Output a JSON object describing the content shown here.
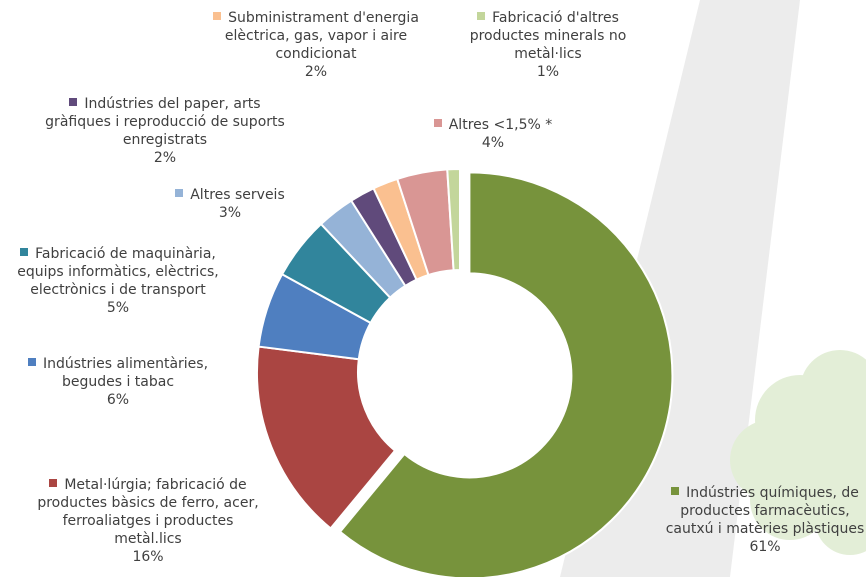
{
  "chart_data": {
    "type": "donut",
    "categories": [
      "Indústries químiques, de productes farmacèutics, cautxú i matèries plàstiques",
      "Metal·lúrgia; fabricació de productes bàsics de ferro, acer, ferroaliatges i productes metàl.lics",
      "Indústries alimentàries, begudes i tabac",
      "Fabricació de maquinària, equips informàtics, elèctrics, electrònics i de transport",
      "Altres serveis",
      "Indústries del paper, arts gràfiques i reproducció de suports enregistrats",
      "Subministrament d'energia elèctrica, gas, vapor i aire condicionat",
      "Altres <1,5% *",
      "Fabricació d'altres productes minerals no metàl·lics"
    ],
    "values": [
      61,
      16,
      6,
      5,
      3,
      2,
      2,
      4,
      1
    ],
    "value_labels": [
      "61%",
      "16%",
      "6%",
      "5%",
      "3%",
      "2%",
      "2%",
      "4%",
      "1%"
    ],
    "colors": [
      "#77933c",
      "#aa4542",
      "#4f7fc0",
      "#31859c",
      "#95b3d7",
      "#604a7b",
      "#fac090",
      "#d99694",
      "#c3d69b"
    ]
  }
}
